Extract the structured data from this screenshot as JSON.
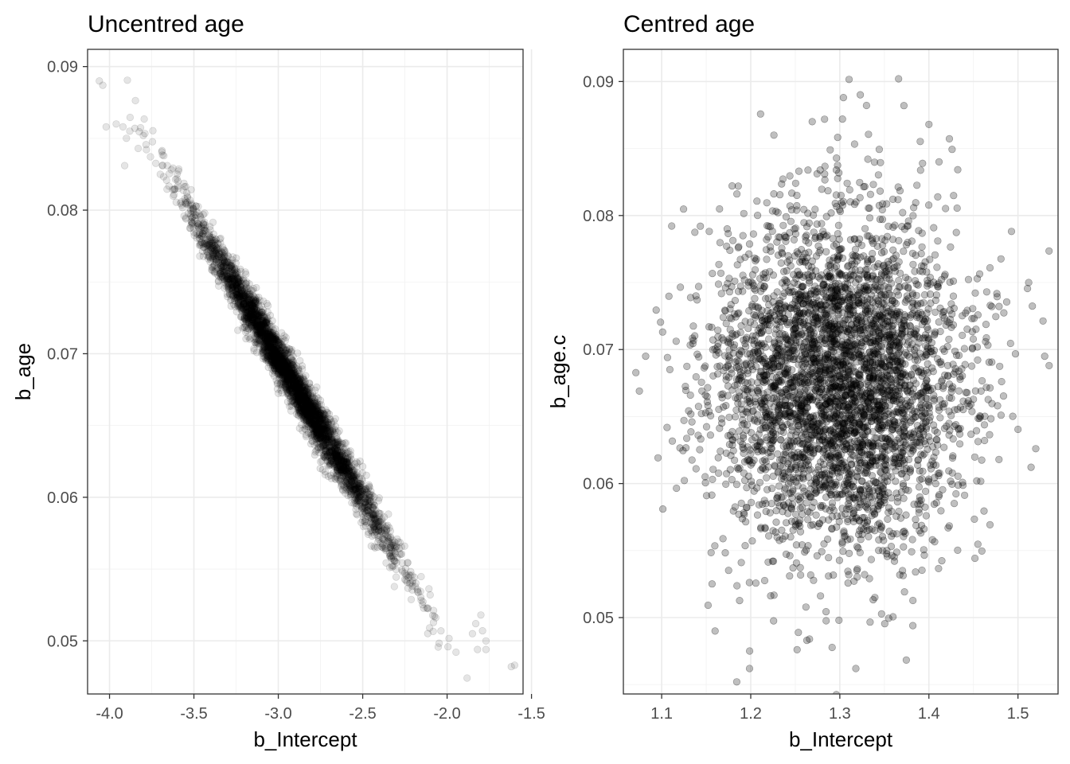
{
  "chart_data": [
    {
      "type": "scatter",
      "title": "Uncentred age",
      "xlabel": "b_Intercept",
      "ylabel": "b_age",
      "xlim": [
        -4.13,
        -1.55
      ],
      "ylim": [
        0.0463,
        0.0912
      ],
      "x_ticks": [
        -4.0,
        -3.5,
        -3.0,
        -2.5,
        -2.0,
        -1.5
      ],
      "x_tick_labels": [
        "-4.0",
        "-3.5",
        "-3.0",
        "-2.5",
        "-2.0",
        "-1.5"
      ],
      "y_ticks": [
        0.05,
        0.06,
        0.07,
        0.08,
        0.09
      ],
      "y_tick_labels": [
        "0.05",
        "0.06",
        "0.07",
        "0.08",
        "0.09"
      ],
      "grid": true,
      "point_color": "#000000",
      "point_alpha": 0.1,
      "n_points": 4000,
      "x_mean": -2.92,
      "x_sd": 0.3,
      "y_intercept_at_mean": 0.0681,
      "y_slope": -0.0196,
      "y_noise_sd": 0.0008,
      "points": [
        [
          -4.06,
          0.089
        ],
        [
          -4.04,
          0.0887
        ],
        [
          -4.02,
          0.0858
        ],
        [
          -3.96,
          0.086
        ],
        [
          -3.92,
          0.0858
        ],
        [
          -3.9,
          0.085
        ],
        [
          -3.88,
          0.0855
        ],
        [
          -3.91,
          0.0831
        ],
        [
          -3.85,
          0.0857
        ],
        [
          -3.8,
          0.0852
        ],
        [
          -3.83,
          0.0843
        ],
        [
          -1.62,
          0.0482
        ],
        [
          -1.6,
          0.0483
        ],
        [
          -1.77,
          0.0494
        ],
        [
          -1.77,
          0.05
        ],
        [
          -1.79,
          0.0507
        ],
        [
          -1.82,
          0.0494
        ],
        [
          -1.85,
          0.0505
        ],
        [
          -1.8,
          0.0518
        ],
        [
          -1.83,
          0.0512
        ]
      ]
    },
    {
      "type": "scatter",
      "title": "Centred age",
      "xlabel": "b_Intercept",
      "ylabel": "b_age.c",
      "xlim": [
        1.057,
        1.545
      ],
      "ylim": [
        0.0443,
        0.0924
      ],
      "x_ticks": [
        1.1,
        1.2,
        1.3,
        1.4,
        1.5
      ],
      "x_tick_labels": [
        "1.1",
        "1.2",
        "1.3",
        "1.4",
        "1.5"
      ],
      "y_ticks": [
        0.05,
        0.06,
        0.07,
        0.08,
        0.09
      ],
      "y_tick_labels": [
        "0.05",
        "0.06",
        "0.07",
        "0.08",
        "0.09"
      ],
      "grid": true,
      "point_color": "#000000",
      "point_alpha": 0.25,
      "n_points": 4000,
      "x_mean": 1.3,
      "x_sd": 0.07,
      "y_mean": 0.0676,
      "y_sd": 0.0062,
      "points": [
        [
          1.366,
          0.0902
        ],
        [
          1.304,
          0.0888
        ],
        [
          1.372,
          0.0882
        ],
        [
          1.303,
          0.0872
        ],
        [
          1.4,
          0.0868
        ],
        [
          1.269,
          0.087
        ],
        [
          1.226,
          0.086
        ],
        [
          1.318,
          0.0462
        ],
        [
          1.252,
          0.0476
        ],
        [
          1.266,
          0.0484
        ],
        [
          1.263,
          0.0483
        ],
        [
          1.299,
          0.0498
        ],
        [
          1.382,
          0.0494
        ],
        [
          1.16,
          0.049
        ],
        [
          1.53,
          0.0695
        ],
        [
          1.535,
          0.0688
        ],
        [
          1.075,
          0.0669
        ],
        [
          1.082,
          0.0695
        ],
        [
          1.52,
          0.0626
        ],
        [
          1.512,
          0.075
        ]
      ]
    }
  ]
}
